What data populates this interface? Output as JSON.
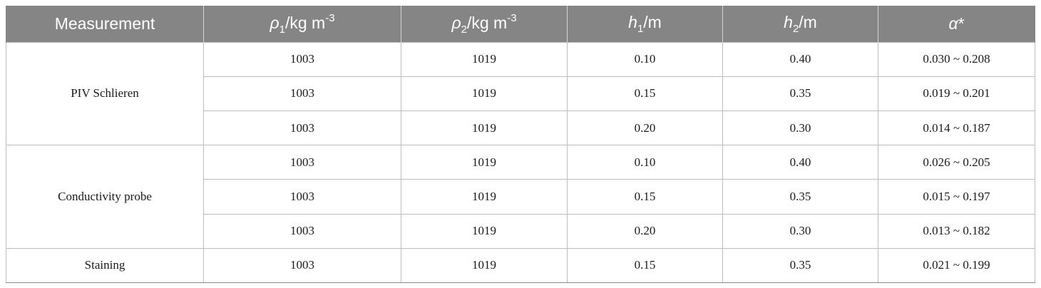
{
  "header": {
    "measurement": "Measurement",
    "rho1": {
      "sym": "ρ",
      "sub": "1",
      "unit": "/kg m",
      "exp": "-3"
    },
    "rho2": {
      "sym": "ρ",
      "sub": "2",
      "unit": "/kg m",
      "exp": "-3"
    },
    "h1": {
      "sym": "h",
      "sub": "1",
      "unit": "/m"
    },
    "h2": {
      "sym": "h",
      "sub": "2",
      "unit": "/m"
    },
    "alpha": {
      "sym": "α",
      "suffix": "*"
    }
  },
  "groups": [
    {
      "label": "PIV Schlieren",
      "rows": [
        {
          "rho1": "1003",
          "rho2": "1019",
          "h1": "0.10",
          "h2": "0.40",
          "alpha": "0.030 ~ 0.208"
        },
        {
          "rho1": "1003",
          "rho2": "1019",
          "h1": "0.15",
          "h2": "0.35",
          "alpha": "0.019 ~ 0.201"
        },
        {
          "rho1": "1003",
          "rho2": "1019",
          "h1": "0.20",
          "h2": "0.30",
          "alpha": "0.014 ~ 0.187"
        }
      ]
    },
    {
      "label": "Conductivity probe",
      "rows": [
        {
          "rho1": "1003",
          "rho2": "1019",
          "h1": "0.10",
          "h2": "0.40",
          "alpha": "0.026 ~ 0.205"
        },
        {
          "rho1": "1003",
          "rho2": "1019",
          "h1": "0.15",
          "h2": "0.35",
          "alpha": "0.015 ~ 0.197"
        },
        {
          "rho1": "1003",
          "rho2": "1019",
          "h1": "0.20",
          "h2": "0.30",
          "alpha": "0.013 ~ 0.182"
        }
      ]
    },
    {
      "label": "Staining",
      "rows": [
        {
          "rho1": "1003",
          "rho2": "1019",
          "h1": "0.15",
          "h2": "0.35",
          "alpha": "0.021 ~ 0.199"
        }
      ]
    }
  ]
}
